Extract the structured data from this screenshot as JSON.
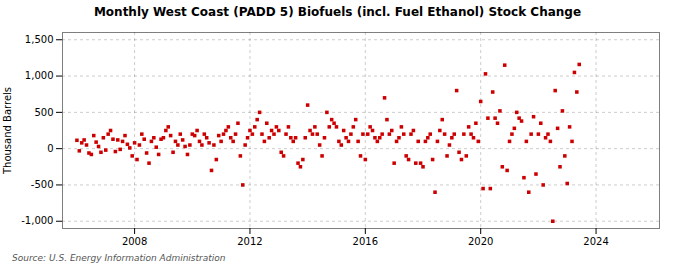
{
  "chart_data": {
    "type": "scatter",
    "title": "Monthly West Coast (PADD 5) Biofuels (incl. Fuel Ethanol) Stock Change",
    "ylabel": "Thousand Barrels",
    "source": "Source: U.S. Energy Information Administration",
    "color": "#cc0000",
    "marker": "square",
    "grid": true,
    "ylim": [
      -1100,
      1600
    ],
    "yticks": [
      {
        "value": -1000,
        "label": "-1,000"
      },
      -500,
      0,
      500,
      {
        "value": 1000,
        "label": "1,000"
      },
      {
        "value": 1500,
        "label": "1,500"
      }
    ],
    "xlim": [
      2005.5,
      2026.2
    ],
    "xticks": [
      2008,
      2012,
      2016,
      2020,
      2024
    ],
    "x": [
      2006,
      2006.0833333333333,
      2006.1666666666667,
      2006.25,
      2006.3333333333333,
      2006.4166666666667,
      2006.5,
      2006.5833333333333,
      2006.6666666666667,
      2006.75,
      2006.8333333333333,
      2006.9166666666667,
      2007,
      2007.0833333333333,
      2007.1666666666667,
      2007.25,
      2007.3333333333333,
      2007.4166666666667,
      2007.5,
      2007.5833333333333,
      2007.6666666666667,
      2007.75,
      2007.8333333333333,
      2007.9166666666667,
      2008,
      2008.0833333333333,
      2008.1666666666667,
      2008.25,
      2008.3333333333333,
      2008.4166666666667,
      2008.5,
      2008.5833333333333,
      2008.6666666666667,
      2008.75,
      2008.8333333333333,
      2008.9166666666667,
      2009,
      2009.0833333333333,
      2009.1666666666667,
      2009.25,
      2009.3333333333333,
      2009.4166666666667,
      2009.5,
      2009.5833333333333,
      2009.6666666666667,
      2009.75,
      2009.8333333333333,
      2009.9166666666667,
      2010,
      2010.0833333333333,
      2010.1666666666667,
      2010.25,
      2010.3333333333333,
      2010.4166666666667,
      2010.5,
      2010.5833333333333,
      2010.6666666666667,
      2010.75,
      2010.8333333333333,
      2010.9166666666667,
      2011,
      2011.0833333333333,
      2011.1666666666667,
      2011.25,
      2011.3333333333333,
      2011.4166666666667,
      2011.5,
      2011.5833333333333,
      2011.6666666666667,
      2011.75,
      2011.8333333333333,
      2011.9166666666667,
      2012,
      2012.0833333333333,
      2012.1666666666667,
      2012.25,
      2012.3333333333333,
      2012.4166666666667,
      2012.5,
      2012.5833333333333,
      2012.6666666666667,
      2012.75,
      2012.8333333333333,
      2012.9166666666667,
      2013,
      2013.0833333333333,
      2013.1666666666667,
      2013.25,
      2013.3333333333333,
      2013.4166666666667,
      2013.5,
      2013.5833333333333,
      2013.6666666666667,
      2013.75,
      2013.8333333333333,
      2013.9166666666667,
      2014,
      2014.0833333333333,
      2014.1666666666667,
      2014.25,
      2014.3333333333333,
      2014.4166666666667,
      2014.5,
      2014.5833333333333,
      2014.6666666666667,
      2014.75,
      2014.8333333333333,
      2014.9166666666667,
      2015,
      2015.0833333333333,
      2015.1666666666667,
      2015.25,
      2015.3333333333333,
      2015.4166666666667,
      2015.5,
      2015.5833333333333,
      2015.6666666666667,
      2015.75,
      2015.8333333333333,
      2015.9166666666667,
      2016,
      2016.0833333333333,
      2016.1666666666667,
      2016.25,
      2016.3333333333333,
      2016.4166666666667,
      2016.5,
      2016.5833333333333,
      2016.6666666666667,
      2016.75,
      2016.8333333333333,
      2016.9166666666667,
      2017,
      2017.0833333333333,
      2017.1666666666667,
      2017.25,
      2017.3333333333333,
      2017.4166666666667,
      2017.5,
      2017.5833333333333,
      2017.6666666666667,
      2017.75,
      2017.8333333333333,
      2017.9166666666667,
      2018,
      2018.0833333333333,
      2018.1666666666667,
      2018.25,
      2018.3333333333333,
      2018.4166666666667,
      2018.5,
      2018.5833333333333,
      2018.6666666666667,
      2018.75,
      2018.8333333333333,
      2018.9166666666667,
      2019,
      2019.0833333333333,
      2019.1666666666667,
      2019.25,
      2019.3333333333333,
      2019.4166666666667,
      2019.5,
      2019.5833333333333,
      2019.6666666666667,
      2019.75,
      2019.8333333333333,
      2019.9166666666667,
      2020,
      2020.0833333333333,
      2020.1666666666667,
      2020.25,
      2020.3333333333333,
      2020.4166666666667,
      2020.5,
      2020.5833333333333,
      2020.6666666666667,
      2020.75,
      2020.8333333333333,
      2020.9166666666667,
      2021,
      2021.0833333333333,
      2021.1666666666667,
      2021.25,
      2021.3333333333333,
      2021.4166666666667,
      2021.5,
      2021.5833333333333,
      2021.6666666666667,
      2021.75,
      2021.8333333333333,
      2021.9166666666667,
      2022,
      2022.0833333333333,
      2022.1666666666667,
      2022.25,
      2022.3333333333333,
      2022.4166666666667,
      2022.5,
      2022.5833333333333,
      2022.6666666666667,
      2022.75,
      2022.8333333333333,
      2022.9166666666667,
      2023,
      2023.0833333333333,
      2023.1666666666667,
      2023.25,
      2023.3333333333333,
      2023.4166666666667
    ],
    "values": [
      115,
      -30,
      80,
      120,
      50,
      -60,
      -80,
      180,
      90,
      30,
      -50,
      150,
      -20,
      200,
      250,
      130,
      -40,
      120,
      -10,
      100,
      180,
      60,
      10,
      -100,
      80,
      -150,
      50,
      200,
      130,
      -60,
      -200,
      100,
      150,
      20,
      -80,
      130,
      150,
      250,
      300,
      180,
      -50,
      100,
      50,
      200,
      120,
      30,
      -80,
      50,
      200,
      180,
      250,
      100,
      50,
      200,
      150,
      80,
      -300,
      50,
      -150,
      180,
      100,
      200,
      250,
      300,
      150,
      100,
      200,
      350,
      -100,
      -500,
      50,
      150,
      250,
      200,
      300,
      400,
      500,
      200,
      100,
      350,
      150,
      250,
      200,
      300,
      250,
      -50,
      -100,
      200,
      300,
      150,
      100,
      150,
      -200,
      -250,
      -150,
      150,
      600,
      250,
      200,
      300,
      200,
      50,
      -100,
      150,
      500,
      300,
      400,
      350,
      300,
      100,
      50,
      250,
      150,
      100,
      200,
      300,
      400,
      100,
      -100,
      200,
      -150,
      200,
      300,
      250,
      150,
      100,
      150,
      200,
      700,
      400,
      200,
      250,
      -200,
      100,
      150,
      300,
      200,
      -100,
      -150,
      200,
      250,
      -200,
      100,
      -200,
      -250,
      100,
      150,
      200,
      -150,
      -600,
      100,
      250,
      400,
      200,
      -100,
      50,
      150,
      200,
      800,
      -50,
      -150,
      200,
      -100,
      300,
      200,
      150,
      350,
      100,
      650,
      -550,
      1030,
      420,
      -550,
      780,
      420,
      350,
      520,
      -250,
      1150,
      -300,
      100,
      200,
      280,
      500,
      420,
      380,
      -400,
      100,
      -600,
      200,
      440,
      -350,
      200,
      350,
      -500,
      150,
      200,
      100,
      -1000,
      800,
      280,
      -250,
      520,
      -100,
      -480,
      300,
      100,
      1050,
      780,
      1160
    ]
  }
}
